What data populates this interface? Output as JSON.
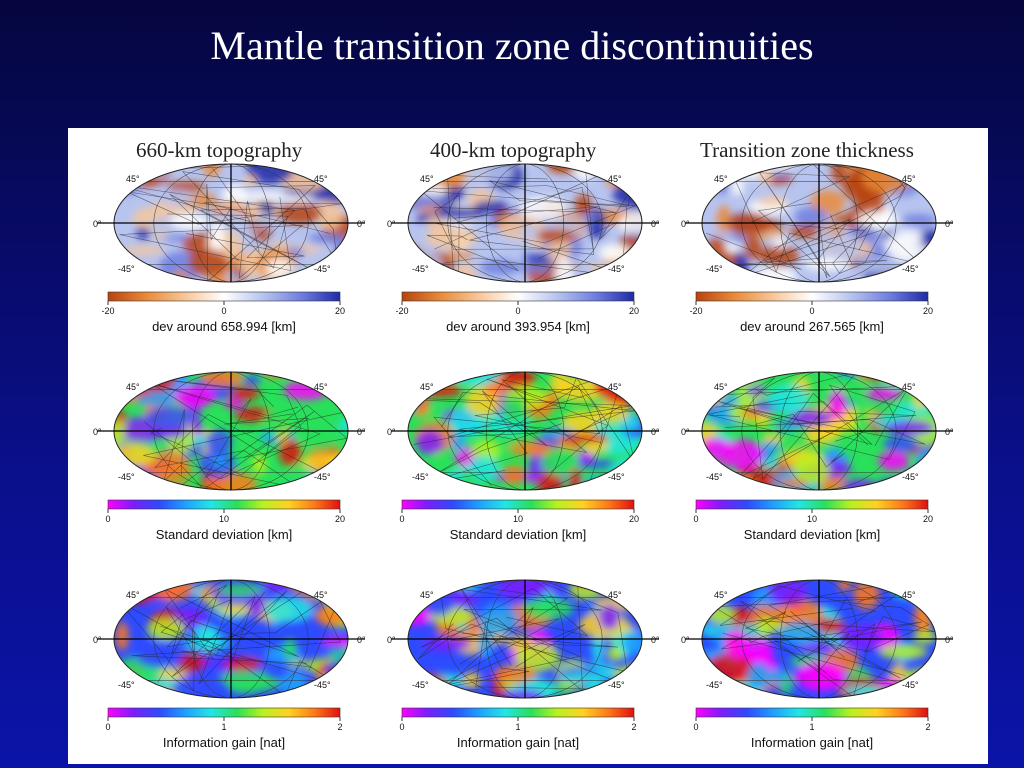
{
  "title": "Mantle transition zone discontinuities",
  "columns": [
    {
      "title": "660-km topography"
    },
    {
      "title": "400-km topography"
    },
    {
      "title": "Transition zone thickness"
    }
  ],
  "rows": [
    {
      "scheme": "diverging",
      "colorbar_labels": [
        "dev around 658.994 [km]",
        "dev around 393.954 [km]",
        "dev around 267.565 [km]"
      ],
      "ticks": [
        "-20",
        "0",
        "20"
      ]
    },
    {
      "scheme": "rainbow",
      "colorbar_labels": [
        "Standard deviation [km]",
        "Standard deviation [km]",
        "Standard deviation [km]"
      ],
      "ticks": [
        "0",
        "10",
        "20"
      ]
    },
    {
      "scheme": "rainbow",
      "colorbar_labels": [
        "Information gain [nat]",
        "Information gain [nat]",
        "Information gain [nat]"
      ],
      "ticks": [
        "0",
        "1",
        "2"
      ]
    }
  ],
  "map_labels": {
    "lat_north": "45°",
    "lat_south": "-45°",
    "equator": "0°"
  },
  "colors": {
    "diverging": [
      "#b8430e",
      "#e98b3a",
      "#f7c79a",
      "#ffffff",
      "#b7c4ef",
      "#6f7fe0",
      "#1f2aa8"
    ],
    "rainbow": [
      "#ff00ff",
      "#7a1dff",
      "#2d4bff",
      "#1fa0ff",
      "#20e6e6",
      "#28e05a",
      "#b8f21e",
      "#ffd21e",
      "#ff7a1a",
      "#e01010"
    ]
  }
}
